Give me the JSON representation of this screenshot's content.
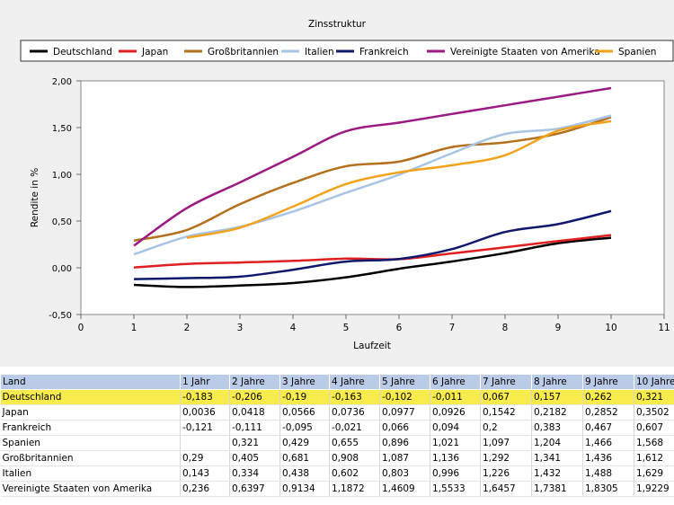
{
  "chart_data": {
    "type": "line",
    "title": "Zinsstruktur",
    "xlabel": "Laufzeit",
    "ylabel": "Rendite in %",
    "xlim": [
      0,
      11
    ],
    "ylim": [
      -0.5,
      2.0
    ],
    "x_ticks": [
      0,
      1,
      2,
      3,
      4,
      5,
      6,
      7,
      8,
      9,
      10,
      11
    ],
    "y_ticks": [
      "-0,50",
      "0,00",
      "0,50",
      "1,00",
      "1,50",
      "2,00"
    ],
    "x": [
      1,
      2,
      3,
      4,
      5,
      6,
      7,
      8,
      9,
      10
    ],
    "legend_position": "top",
    "series": [
      {
        "name": "Deutschland",
        "color": "#000000",
        "values": [
          -0.183,
          -0.206,
          -0.19,
          -0.163,
          -0.102,
          -0.011,
          0.067,
          0.157,
          0.262,
          0.321
        ]
      },
      {
        "name": "Japan",
        "color": "#e02020",
        "values": [
          0.0036,
          0.0418,
          0.0566,
          0.0736,
          0.0977,
          0.0926,
          0.1542,
          0.2182,
          0.2852,
          0.3502
        ]
      },
      {
        "name": "Großbritannien",
        "color": "#b5701e",
        "values": [
          0.29,
          0.405,
          0.681,
          0.908,
          1.087,
          1.136,
          1.292,
          1.341,
          1.436,
          1.612
        ]
      },
      {
        "name": "Italien",
        "color": "#a8c4e4",
        "values": [
          0.143,
          0.334,
          0.438,
          0.602,
          0.803,
          0.996,
          1.226,
          1.432,
          1.488,
          1.629
        ]
      },
      {
        "name": "Frankreich",
        "color": "#10186e",
        "values": [
          -0.121,
          -0.111,
          -0.095,
          -0.021,
          0.066,
          0.094,
          0.2,
          0.383,
          0.467,
          0.607
        ]
      },
      {
        "name": "Vereinigte Staaten von Amerika",
        "color": "#9b1b82",
        "values": [
          0.236,
          0.6397,
          0.9134,
          1.1872,
          1.4609,
          1.5533,
          1.6457,
          1.7381,
          1.8305,
          1.9229
        ]
      },
      {
        "name": "Spanien",
        "color": "#f4a21a",
        "values": [
          null,
          0.321,
          0.429,
          0.655,
          0.896,
          1.021,
          1.097,
          1.204,
          1.466,
          1.568
        ]
      }
    ]
  },
  "table": {
    "headers": [
      "Land",
      "1 Jahr",
      "2 Jahre",
      "3 Jahre",
      "4 Jahre",
      "5 Jahre",
      "6 Jahre",
      "7 Jahre",
      "8 Jahre",
      "9 Jahre",
      "10 Jahre"
    ],
    "highlight_color": "#f8ec4c",
    "rows": [
      {
        "highlight": true,
        "cells": [
          "Deutschland",
          "-0,183",
          "-0,206",
          "-0,19",
          "-0,163",
          "-0,102",
          "-0,011",
          "0,067",
          "0,157",
          "0,262",
          "0,321"
        ]
      },
      {
        "highlight": false,
        "cells": [
          "Japan",
          "0,0036",
          "0,0418",
          "0,0566",
          "0,0736",
          "0,0977",
          "0,0926",
          "0,1542",
          "0,2182",
          "0,2852",
          "0,3502"
        ]
      },
      {
        "highlight": false,
        "cells": [
          "Frankreich",
          "-0,121",
          "-0,111",
          "-0,095",
          "-0,021",
          "0,066",
          "0,094",
          "0,2",
          "0,383",
          "0,467",
          "0,607"
        ]
      },
      {
        "highlight": false,
        "cells": [
          "Spanien",
          "",
          "0,321",
          "0,429",
          "0,655",
          "0,896",
          "1,021",
          "1,097",
          "1,204",
          "1,466",
          "1,568"
        ]
      },
      {
        "highlight": false,
        "cells": [
          "Großbritannien",
          "0,29",
          "0,405",
          "0,681",
          "0,908",
          "1,087",
          "1,136",
          "1,292",
          "1,341",
          "1,436",
          "1,612"
        ]
      },
      {
        "highlight": false,
        "cells": [
          "Italien",
          "0,143",
          "0,334",
          "0,438",
          "0,602",
          "0,803",
          "0,996",
          "1,226",
          "1,432",
          "1,488",
          "1,629"
        ]
      },
      {
        "highlight": false,
        "cells": [
          "Vereinigte Staaten von Amerika",
          "0,236",
          "0,6397",
          "0,9134",
          "1,1872",
          "1,4609",
          "1,5533",
          "1,6457",
          "1,7381",
          "1,8305",
          "1,9229"
        ]
      }
    ]
  }
}
